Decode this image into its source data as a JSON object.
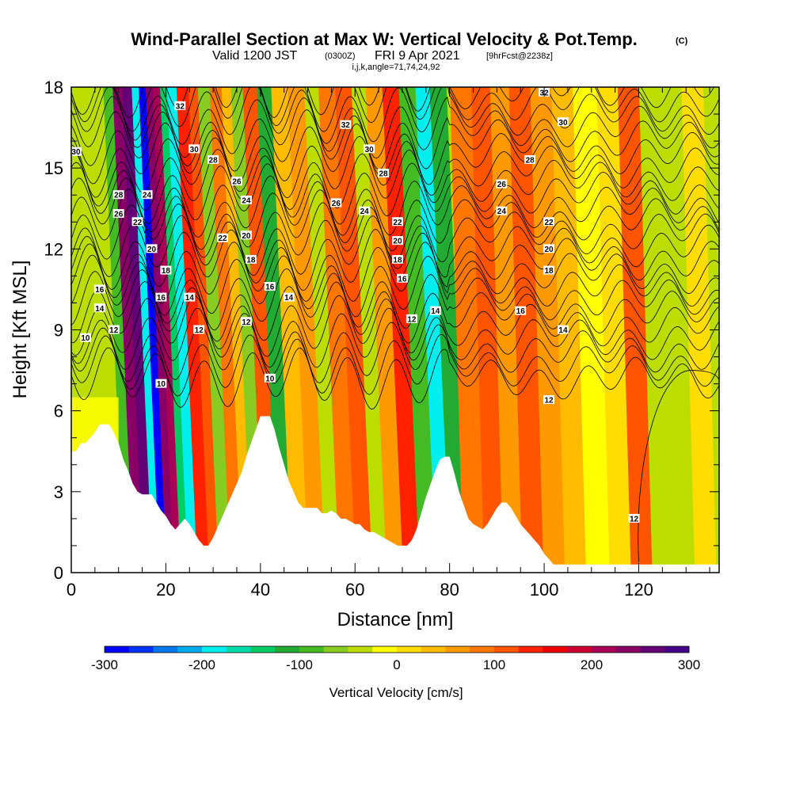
{
  "title": {
    "main": "Wind-Parallel Section at Max W: Vertical Velocity & Pot.Temp.",
    "main_unit": "(C)",
    "valid_prefix": "Valid 1200 JST",
    "valid_z": "(0300Z)",
    "valid_date": "FRI 9 Apr 2021",
    "forecast": "[9hrFcst@2238z]",
    "indices": "i,j,k,angle=71,74,24,92"
  },
  "chart_data": {
    "type": "heatmap",
    "xlabel": "Distance [nm]",
    "ylabel": "Height [Kft MSL]",
    "xlim": [
      0,
      137
    ],
    "ylim": [
      0,
      18
    ],
    "x_ticks": [
      "0",
      "20",
      "40",
      "60",
      "80",
      "100",
      "120"
    ],
    "y_ticks": [
      "0",
      "3",
      "6",
      "9",
      "12",
      "15",
      "18"
    ],
    "colorbar": {
      "title": "Vertical Velocity [cm/s]",
      "tick_labels": [
        "-300",
        "-200",
        "-100",
        "0",
        "100",
        "200",
        "300"
      ],
      "colors": [
        "#0000ff",
        "#0033ff",
        "#0077ee",
        "#00aaee",
        "#00eeee",
        "#00ddaa",
        "#00cc66",
        "#22aa33",
        "#44bb22",
        "#88cc22",
        "#bbdd00",
        "#ffff00",
        "#ffdd00",
        "#ffbb00",
        "#ff9900",
        "#ff7700",
        "#ff5500",
        "#ff2200",
        "#ee0000",
        "#cc0033",
        "#aa0055",
        "#880066",
        "#660077",
        "#440088"
      ]
    },
    "terrain_height_kft": [
      [
        0,
        4.5
      ],
      [
        1,
        4.5
      ],
      [
        2,
        4.8
      ],
      [
        3,
        4.8
      ],
      [
        4,
        5.0
      ],
      [
        5,
        5.2
      ],
      [
        6,
        5.5
      ],
      [
        7,
        5.5
      ],
      [
        8,
        5.5
      ],
      [
        9,
        5.2
      ],
      [
        10,
        4.8
      ],
      [
        11,
        4.2
      ],
      [
        12,
        3.8
      ],
      [
        13,
        3.3
      ],
      [
        14,
        3.0
      ],
      [
        15,
        2.9
      ],
      [
        16,
        2.9
      ],
      [
        17,
        2.9
      ],
      [
        18,
        2.6
      ],
      [
        19,
        2.3
      ],
      [
        20,
        2.1
      ],
      [
        21,
        1.8
      ],
      [
        22,
        1.6
      ],
      [
        23,
        1.8
      ],
      [
        24,
        2.0
      ],
      [
        25,
        1.8
      ],
      [
        26,
        1.5
      ],
      [
        27,
        1.2
      ],
      [
        28,
        1.0
      ],
      [
        29,
        1.0
      ],
      [
        30,
        1.3
      ],
      [
        31,
        1.7
      ],
      [
        32,
        2.1
      ],
      [
        33,
        2.5
      ],
      [
        34,
        2.9
      ],
      [
        35,
        3.3
      ],
      [
        36,
        3.7
      ],
      [
        37,
        4.3
      ],
      [
        38,
        4.8
      ],
      [
        39,
        5.3
      ],
      [
        40,
        5.8
      ],
      [
        41,
        5.8
      ],
      [
        42,
        5.8
      ],
      [
        43,
        5.3
      ],
      [
        44,
        4.6
      ],
      [
        45,
        4.0
      ],
      [
        46,
        3.4
      ],
      [
        47,
        3.0
      ],
      [
        48,
        2.6
      ],
      [
        49,
        2.4
      ],
      [
        50,
        2.4
      ],
      [
        51,
        2.4
      ],
      [
        52,
        2.4
      ],
      [
        53,
        2.2
      ],
      [
        54,
        2.2
      ],
      [
        55,
        2.3
      ],
      [
        56,
        2.2
      ],
      [
        57,
        2.0
      ],
      [
        58,
        2.0
      ],
      [
        59,
        1.9
      ],
      [
        60,
        1.8
      ],
      [
        61,
        1.8
      ],
      [
        62,
        1.6
      ],
      [
        63,
        1.5
      ],
      [
        64,
        1.5
      ],
      [
        65,
        1.4
      ],
      [
        66,
        1.3
      ],
      [
        67,
        1.2
      ],
      [
        68,
        1.1
      ],
      [
        69,
        1.0
      ],
      [
        70,
        1.0
      ],
      [
        71,
        1.0
      ],
      [
        72,
        1.2
      ],
      [
        73,
        1.6
      ],
      [
        74,
        2.2
      ],
      [
        75,
        2.8
      ],
      [
        76,
        3.3
      ],
      [
        77,
        3.8
      ],
      [
        78,
        4.2
      ],
      [
        79,
        4.3
      ],
      [
        80,
        4.3
      ],
      [
        81,
        3.7
      ],
      [
        82,
        3.0
      ],
      [
        83,
        2.5
      ],
      [
        84,
        2.0
      ],
      [
        85,
        1.8
      ],
      [
        86,
        1.7
      ],
      [
        87,
        1.6
      ],
      [
        88,
        1.8
      ],
      [
        89,
        2.1
      ],
      [
        90,
        2.4
      ],
      [
        91,
        2.6
      ],
      [
        92,
        2.6
      ],
      [
        93,
        2.4
      ],
      [
        94,
        2.1
      ],
      [
        95,
        1.8
      ],
      [
        96,
        1.6
      ],
      [
        97,
        1.4
      ],
      [
        98,
        1.2
      ],
      [
        99,
        1.0
      ],
      [
        100,
        0.7
      ],
      [
        101,
        0.5
      ],
      [
        102,
        0.3
      ],
      [
        103,
        0.3
      ],
      [
        105,
        0.3
      ],
      [
        110,
        0.3
      ],
      [
        115,
        0.3
      ],
      [
        120,
        0.3
      ],
      [
        125,
        0.3
      ],
      [
        130,
        0.3
      ],
      [
        137,
        0.3
      ]
    ],
    "velocity_bands": [
      {
        "x": 10,
        "w": -90
      },
      {
        "x": 12,
        "w": 230
      },
      {
        "x": 14,
        "w": 250
      },
      {
        "x": 16,
        "w": -200
      },
      {
        "x": 17,
        "w": -290
      },
      {
        "x": 19,
        "w": 230
      },
      {
        "x": 20,
        "w": 210
      },
      {
        "x": 22,
        "w": -140
      },
      {
        "x": 23,
        "w": -190
      },
      {
        "x": 26,
        "w": 140
      },
      {
        "x": 28,
        "w": 100
      },
      {
        "x": 30,
        "w": -60
      },
      {
        "x": 33,
        "w": 80
      },
      {
        "x": 35,
        "w": 40
      },
      {
        "x": 37,
        "w": -70
      },
      {
        "x": 40,
        "w": 120
      },
      {
        "x": 43,
        "w": -120
      },
      {
        "x": 46,
        "w": 30
      },
      {
        "x": 50,
        "w": 60
      },
      {
        "x": 53,
        "w": -30
      },
      {
        "x": 56,
        "w": 90
      },
      {
        "x": 60,
        "w": 110
      },
      {
        "x": 63,
        "w": -50
      },
      {
        "x": 66,
        "w": 70
      },
      {
        "x": 70,
        "w": 130
      },
      {
        "x": 73,
        "w": -90
      },
      {
        "x": 77,
        "w": -180
      },
      {
        "x": 79,
        "w": -110
      },
      {
        "x": 84,
        "w": 90
      },
      {
        "x": 88,
        "w": 120
      },
      {
        "x": 92,
        "w": 60
      },
      {
        "x": 96,
        "w": 100
      },
      {
        "x": 101,
        "w": 60
      },
      {
        "x": 105,
        "w": 30
      },
      {
        "x": 110,
        "w": -20
      },
      {
        "x": 115,
        "w": 20
      },
      {
        "x": 119,
        "w": 110
      },
      {
        "x": 124,
        "w": -50
      },
      {
        "x": 128,
        "w": -40
      },
      {
        "x": 133,
        "w": 15
      }
    ],
    "theta_contour_labels": [
      {
        "x": 1,
        "y": 15.6,
        "v": "30"
      },
      {
        "x": 10,
        "y": 14.0,
        "v": "28"
      },
      {
        "x": 10,
        "y": 13.3,
        "v": "26"
      },
      {
        "x": 16,
        "y": 14.0,
        "v": "24"
      },
      {
        "x": 14,
        "y": 13.0,
        "v": "22"
      },
      {
        "x": 17,
        "y": 12.0,
        "v": "20"
      },
      {
        "x": 20,
        "y": 11.2,
        "v": "18"
      },
      {
        "x": 19,
        "y": 10.2,
        "v": "16"
      },
      {
        "x": 6,
        "y": 10.5,
        "v": "16"
      },
      {
        "x": 6,
        "y": 9.8,
        "v": "14"
      },
      {
        "x": 9,
        "y": 9.0,
        "v": "12"
      },
      {
        "x": 3,
        "y": 8.7,
        "v": "10"
      },
      {
        "x": 23,
        "y": 17.3,
        "v": "32"
      },
      {
        "x": 26,
        "y": 15.7,
        "v": "30"
      },
      {
        "x": 30,
        "y": 15.3,
        "v": "28"
      },
      {
        "x": 35,
        "y": 14.5,
        "v": "26"
      },
      {
        "x": 37,
        "y": 13.8,
        "v": "24"
      },
      {
        "x": 32,
        "y": 12.4,
        "v": "22"
      },
      {
        "x": 37,
        "y": 12.5,
        "v": "20"
      },
      {
        "x": 38,
        "y": 11.6,
        "v": "18"
      },
      {
        "x": 42,
        "y": 10.6,
        "v": "16"
      },
      {
        "x": 25,
        "y": 10.2,
        "v": "14"
      },
      {
        "x": 27,
        "y": 9.0,
        "v": "12"
      },
      {
        "x": 37,
        "y": 9.3,
        "v": "12"
      },
      {
        "x": 46,
        "y": 10.2,
        "v": "14"
      },
      {
        "x": 19,
        "y": 7.0,
        "v": "10"
      },
      {
        "x": 42,
        "y": 7.2,
        "v": "10"
      },
      {
        "x": 58,
        "y": 16.6,
        "v": "32"
      },
      {
        "x": 63,
        "y": 15.7,
        "v": "30"
      },
      {
        "x": 66,
        "y": 14.8,
        "v": "28"
      },
      {
        "x": 56,
        "y": 13.7,
        "v": "26"
      },
      {
        "x": 62,
        "y": 13.4,
        "v": "24"
      },
      {
        "x": 69,
        "y": 13.0,
        "v": "22"
      },
      {
        "x": 69,
        "y": 12.3,
        "v": "20"
      },
      {
        "x": 69,
        "y": 11.6,
        "v": "18"
      },
      {
        "x": 70,
        "y": 10.9,
        "v": "16"
      },
      {
        "x": 72,
        "y": 9.4,
        "v": "12"
      },
      {
        "x": 77,
        "y": 9.7,
        "v": "14"
      },
      {
        "x": 100,
        "y": 17.8,
        "v": "32"
      },
      {
        "x": 104,
        "y": 16.7,
        "v": "30"
      },
      {
        "x": 97,
        "y": 15.3,
        "v": "28"
      },
      {
        "x": 91,
        "y": 14.4,
        "v": "26"
      },
      {
        "x": 91,
        "y": 13.4,
        "v": "24"
      },
      {
        "x": 101,
        "y": 13.0,
        "v": "22"
      },
      {
        "x": 101,
        "y": 12.0,
        "v": "20"
      },
      {
        "x": 101,
        "y": 11.2,
        "v": "18"
      },
      {
        "x": 95,
        "y": 9.7,
        "v": "16"
      },
      {
        "x": 104,
        "y": 9.0,
        "v": "14"
      },
      {
        "x": 101,
        "y": 6.4,
        "v": "12"
      },
      {
        "x": 119,
        "y": 2.0,
        "v": "12"
      }
    ]
  }
}
